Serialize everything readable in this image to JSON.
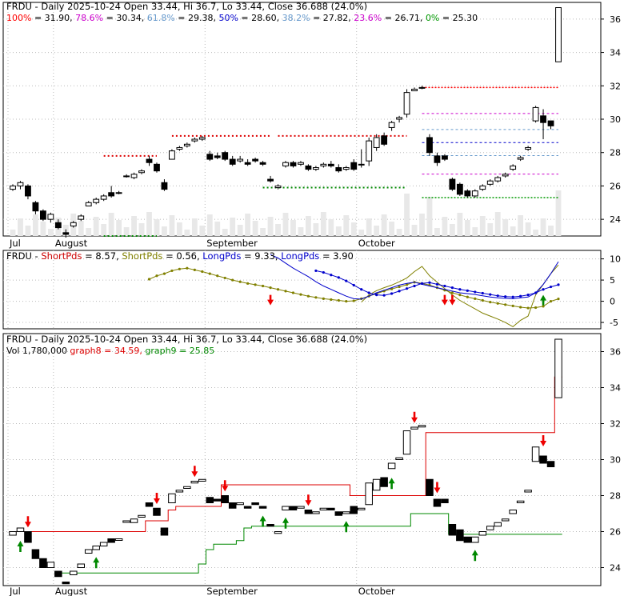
{
  "colors": {
    "frame": "#000000",
    "grid": "#bbbbbb",
    "bull_fill": "#ffffff",
    "bear_fill": "#000000",
    "text": "#000000",
    "fib100": "#ff0000",
    "fib786": "#cc00cc",
    "fib618": "#6699cc",
    "fib50": "#0000cc",
    "fib382": "#6699cc",
    "fib236": "#cc00cc",
    "fib0": "#009900",
    "resistance": "#dd0000",
    "support": "#008800",
    "shortpds1": "#cc0000",
    "shortpds2": "#808000",
    "longpds1": "#0000cc",
    "longpds2": "#0000cc",
    "graph8": "#dd0000",
    "graph9": "#008800",
    "volume": "#e8e8e8",
    "arrow_down": "#ee0000",
    "arrow_up": "#008800"
  },
  "panel1": {
    "title": "FRDU - Daily 2025-10-24 Open 33.44, Hi 36.7, Lo 33.44, Close 36.688 (24.0%)",
    "fib_labels": [
      {
        "key": "100%",
        "val": " = 31.90,",
        "color": "#ff0000"
      },
      {
        "key": "78.6%",
        "val": " = 30.34,",
        "color": "#cc00cc"
      },
      {
        "key": "61.8%",
        "val": " = 29.38,",
        "color": "#6699cc"
      },
      {
        "key": "50%",
        "val": " = 28.60,",
        "color": "#0000cc"
      },
      {
        "key": "38.2%",
        "val": " = 27.82,",
        "color": "#6699cc"
      },
      {
        "key": "23.6%",
        "val": " = 26.71,",
        "color": "#cc00cc"
      },
      {
        "key": "0%",
        "val": " = 25.30",
        "color": "#009900"
      }
    ],
    "y_ticks": [
      "24",
      "26",
      "28",
      "30",
      "32",
      "34",
      "36"
    ]
  },
  "panel2": {
    "name": "FRDU",
    "legend": [
      {
        "label": "ShortPds",
        "val": " = 8.57,",
        "color": "#cc0000"
      },
      {
        "label": "ShortPds",
        "val": " = 0.56,",
        "color": "#808000"
      },
      {
        "label": "LongPds",
        "val": " = 9.33,",
        "color": "#0000cc"
      },
      {
        "label": "LongPds",
        "val": " = 3.90",
        "color": "#0000cc"
      }
    ],
    "y_ticks": [
      "10",
      "5",
      "0",
      "-5"
    ]
  },
  "panel3": {
    "title": "FRDU - Daily 2025-10-24 Open 33.44, Hi 36.7, Lo 33.44, Close 36.688 (24.0%)",
    "legend": [
      {
        "label": "Vol 1,780,000",
        "color": "#000000"
      },
      {
        "label": " graph8 = 34.59,",
        "color": "#dd0000"
      },
      {
        "label": " graph9 = 25.85",
        "color": "#008800"
      }
    ],
    "y_ticks": [
      "24",
      "26",
      "28",
      "30",
      "32",
      "34",
      "36"
    ]
  },
  "x_labels": [
    "Jul",
    "August",
    "September",
    "October"
  ],
  "chart_data": {
    "type": "candlestick",
    "title": "FRDU - Daily 2025-10-24 Open 33.44, Hi 36.7, Lo 33.44, Close 36.688 (24.0%)",
    "ylim": [
      23,
      37
    ],
    "month_ticks": [
      {
        "label": "Jul",
        "index": 0
      },
      {
        "label": "August",
        "index": 6
      },
      {
        "label": "September",
        "index": 26
      },
      {
        "label": "October",
        "index": 46
      }
    ],
    "candles": [
      [
        25.8,
        26.1,
        25.7,
        26.0
      ],
      [
        26.0,
        26.3,
        25.8,
        26.2
      ],
      [
        26.0,
        26.1,
        25.2,
        25.4
      ],
      [
        25.0,
        25.1,
        24.3,
        24.5
      ],
      [
        24.5,
        24.6,
        23.9,
        24.0
      ],
      [
        24.0,
        24.4,
        23.8,
        24.3
      ],
      [
        23.8,
        24.0,
        23.4,
        23.5
      ],
      [
        23.2,
        23.4,
        22.9,
        23.1
      ],
      [
        23.6,
        23.9,
        23.5,
        23.8
      ],
      [
        24.0,
        24.3,
        23.9,
        24.2
      ],
      [
        24.8,
        25.1,
        24.8,
        25.0
      ],
      [
        25.0,
        25.3,
        24.9,
        25.2
      ],
      [
        25.2,
        25.5,
        25.1,
        25.4
      ],
      [
        25.6,
        26.0,
        25.3,
        25.4
      ],
      [
        25.6,
        25.7,
        25.5,
        25.6
      ],
      [
        26.6,
        26.7,
        26.5,
        26.6
      ],
      [
        26.5,
        26.8,
        26.4,
        26.7
      ],
      [
        26.8,
        27.0,
        26.7,
        26.9
      ],
      [
        27.6,
        27.8,
        27.2,
        27.4
      ],
      [
        27.3,
        27.4,
        26.8,
        26.9
      ],
      [
        26.2,
        26.4,
        25.7,
        25.8
      ],
      [
        27.6,
        28.2,
        27.6,
        28.1
      ],
      [
        28.2,
        28.4,
        28.1,
        28.3
      ],
      [
        28.4,
        28.6,
        28.3,
        28.5
      ],
      [
        28.7,
        28.9,
        28.6,
        28.8
      ],
      [
        28.8,
        29.0,
        28.7,
        28.9
      ],
      [
        27.9,
        28.1,
        27.5,
        27.6
      ],
      [
        27.8,
        28.0,
        27.6,
        27.7
      ],
      [
        28.0,
        28.1,
        27.5,
        27.6
      ],
      [
        27.6,
        27.8,
        27.2,
        27.3
      ],
      [
        27.5,
        27.8,
        27.4,
        27.6
      ],
      [
        27.4,
        27.6,
        27.2,
        27.3
      ],
      [
        27.6,
        27.7,
        27.4,
        27.5
      ],
      [
        27.4,
        27.5,
        27.2,
        27.3
      ],
      [
        26.4,
        26.6,
        26.2,
        26.3
      ],
      [
        25.9,
        26.1,
        25.8,
        26.0
      ],
      [
        27.2,
        27.5,
        27.1,
        27.4
      ],
      [
        27.4,
        27.5,
        27.1,
        27.2
      ],
      [
        27.3,
        27.5,
        27.2,
        27.4
      ],
      [
        27.2,
        27.3,
        26.9,
        27.0
      ],
      [
        27.0,
        27.2,
        26.9,
        27.1
      ],
      [
        27.2,
        27.4,
        27.1,
        27.3
      ],
      [
        27.3,
        27.5,
        27.1,
        27.2
      ],
      [
        27.1,
        27.3,
        26.8,
        26.9
      ],
      [
        27.0,
        27.2,
        26.9,
        27.1
      ],
      [
        27.4,
        27.6,
        26.9,
        27.0
      ],
      [
        27.3,
        28.2,
        27.1,
        27.3
      ],
      [
        27.5,
        28.9,
        27.2,
        28.7
      ],
      [
        28.3,
        29.1,
        28.1,
        28.9
      ],
      [
        29.0,
        29.2,
        28.4,
        28.5
      ],
      [
        29.5,
        29.9,
        29.3,
        29.8
      ],
      [
        30.0,
        30.2,
        29.8,
        30.1
      ],
      [
        30.3,
        31.8,
        30.1,
        31.6
      ],
      [
        31.7,
        31.9,
        31.7,
        31.8
      ],
      [
        31.9,
        32.0,
        31.8,
        31.9
      ],
      [
        28.9,
        29.1,
        27.8,
        28.0
      ],
      [
        27.8,
        28.0,
        27.2,
        27.4
      ],
      [
        27.8,
        27.9,
        27.5,
        27.6
      ],
      [
        26.4,
        26.5,
        25.7,
        25.8
      ],
      [
        26.1,
        26.2,
        25.4,
        25.5
      ],
      [
        25.7,
        25.8,
        25.3,
        25.4
      ],
      [
        25.4,
        25.8,
        25.3,
        25.7
      ],
      [
        25.8,
        26.1,
        25.7,
        26.0
      ],
      [
        26.1,
        26.4,
        26.0,
        26.3
      ],
      [
        26.3,
        26.6,
        26.2,
        26.5
      ],
      [
        26.6,
        26.8,
        26.5,
        26.7
      ],
      [
        27.0,
        27.3,
        26.9,
        27.2
      ],
      [
        27.6,
        27.8,
        27.5,
        27.7
      ],
      [
        28.2,
        28.4,
        28.1,
        28.3
      ],
      [
        29.9,
        30.8,
        29.8,
        30.7
      ],
      [
        30.2,
        30.6,
        28.8,
        29.8
      ],
      [
        29.9,
        29.9,
        29.4,
        29.6
      ],
      [
        33.44,
        36.7,
        33.44,
        36.688
      ]
    ],
    "fib_lines": [
      {
        "name": "100%",
        "value": 31.9
      },
      {
        "name": "78.6%",
        "value": 30.34
      },
      {
        "name": "61.8%",
        "value": 29.38
      },
      {
        "name": "50%",
        "value": 28.6
      },
      {
        "name": "38.2%",
        "value": 27.82
      },
      {
        "name": "23.6%",
        "value": 26.71
      },
      {
        "name": "0%",
        "value": 25.3
      }
    ],
    "indicator": {
      "ylim": [
        -6.5,
        12
      ],
      "series": [
        {
          "name": "ShortPds",
          "values": [
            null,
            null,
            null,
            null,
            null,
            null,
            null,
            null,
            null,
            null,
            null,
            null,
            null,
            null,
            null,
            null,
            null,
            null,
            null,
            null,
            null,
            null,
            null,
            null,
            null,
            null,
            null,
            null,
            null,
            null,
            null,
            null,
            null,
            null,
            null,
            null,
            null,
            null,
            null,
            null,
            null,
            null,
            null,
            null,
            null,
            null,
            -0.2,
            1.5,
            2.5,
            3.2,
            3.8,
            4.6,
            5.5,
            7.0,
            8.2,
            6.0,
            4.5,
            3.0,
            1.5,
            0.2,
            -0.8,
            -1.8,
            -2.8,
            -3.5,
            -4.2,
            -5.0,
            -6.0,
            -4.5,
            -3.5,
            1.5,
            4.0,
            6.5,
            8.57
          ]
        },
        {
          "name": "ShortPds",
          "values": [
            null,
            null,
            null,
            null,
            null,
            null,
            null,
            null,
            null,
            null,
            null,
            null,
            null,
            null,
            null,
            null,
            null,
            null,
            5.2,
            6.0,
            6.5,
            7.2,
            7.6,
            7.8,
            7.4,
            7.0,
            6.5,
            6.0,
            5.5,
            5.0,
            4.6,
            4.2,
            3.9,
            3.6,
            3.2,
            2.8,
            2.4,
            2.0,
            1.6,
            1.2,
            0.9,
            0.6,
            0.4,
            0.2,
            0.0,
            0.1,
            0.6,
            1.2,
            1.8,
            2.4,
            2.9,
            3.4,
            3.9,
            4.5,
            4.2,
            3.8,
            3.2,
            2.6,
            2.0,
            1.5,
            1.0,
            0.6,
            0.2,
            -0.2,
            -0.5,
            -0.8,
            -1.1,
            -1.4,
            -1.6,
            -1.5,
            -1.2,
            0.0,
            0.56
          ]
        },
        {
          "name": "LongPds",
          "values": [
            null,
            null,
            null,
            null,
            null,
            null,
            null,
            null,
            null,
            null,
            null,
            null,
            null,
            null,
            null,
            null,
            null,
            null,
            null,
            null,
            null,
            null,
            null,
            null,
            null,
            null,
            null,
            null,
            null,
            null,
            null,
            null,
            null,
            null,
            11.0,
            10.2,
            9.0,
            7.8,
            6.8,
            5.8,
            4.6,
            3.6,
            2.8,
            2.0,
            1.2,
            0.6,
            0.5,
            1.2,
            2.0,
            2.6,
            3.2,
            3.8,
            4.2,
            4.5,
            4.0,
            3.6,
            3.2,
            2.8,
            2.4,
            2.0,
            1.8,
            1.6,
            1.3,
            1.0,
            0.8,
            0.7,
            0.6,
            0.8,
            1.0,
            2.0,
            4.0,
            6.5,
            9.33
          ]
        },
        {
          "name": "LongPds",
          "values": [
            null,
            null,
            null,
            null,
            null,
            null,
            null,
            null,
            null,
            null,
            null,
            null,
            null,
            null,
            null,
            null,
            null,
            null,
            null,
            null,
            null,
            null,
            null,
            null,
            null,
            null,
            null,
            null,
            null,
            null,
            null,
            null,
            null,
            null,
            null,
            null,
            null,
            null,
            null,
            null,
            7.2,
            6.8,
            6.2,
            5.6,
            4.8,
            3.8,
            2.8,
            2.0,
            1.5,
            1.4,
            1.8,
            2.4,
            3.0,
            3.6,
            4.2,
            4.4,
            4.0,
            3.6,
            3.2,
            2.8,
            2.5,
            2.2,
            1.9,
            1.6,
            1.3,
            1.1,
            1.0,
            1.2,
            1.5,
            2.0,
            2.8,
            3.4,
            3.9
          ]
        }
      ],
      "arrows": [
        {
          "index": 34,
          "dir": "down"
        },
        {
          "index": 57,
          "dir": "down"
        },
        {
          "index": 58,
          "dir": "down"
        },
        {
          "index": 70,
          "dir": "up"
        }
      ]
    },
    "bottom": {
      "ylim": [
        23,
        37
      ],
      "graph8": [
        26.0,
        26.0,
        26.0,
        26.0,
        26.0,
        26.0,
        26.0,
        26.0,
        26.0,
        26.0,
        26.0,
        26.0,
        26.0,
        26.0,
        26.0,
        26.0,
        26.0,
        26.0,
        26.6,
        26.6,
        26.6,
        27.2,
        27.4,
        27.4,
        27.4,
        27.4,
        27.4,
        27.4,
        28.6,
        28.6,
        28.6,
        28.6,
        28.6,
        28.6,
        28.6,
        28.6,
        28.6,
        28.6,
        28.6,
        28.6,
        28.6,
        28.6,
        28.6,
        28.6,
        28.6,
        28.0,
        28.0,
        28.0,
        28.0,
        28.0,
        28.0,
        28.0,
        28.0,
        28.0,
        28.0,
        31.5,
        31.5,
        31.5,
        31.5,
        31.5,
        31.5,
        31.5,
        31.5,
        31.5,
        31.5,
        31.5,
        31.5,
        31.5,
        31.5,
        31.5,
        31.5,
        31.5,
        34.59
      ],
      "graph9": [
        null,
        null,
        null,
        null,
        null,
        null,
        23.7,
        23.7,
        23.7,
        23.7,
        23.7,
        23.7,
        23.7,
        23.7,
        23.7,
        23.7,
        23.7,
        23.7,
        23.7,
        23.7,
        23.7,
        23.7,
        23.7,
        23.7,
        23.7,
        24.2,
        25.0,
        25.3,
        25.3,
        25.3,
        25.5,
        26.2,
        26.3,
        26.3,
        26.3,
        26.3,
        26.3,
        26.3,
        26.3,
        26.3,
        26.3,
        26.3,
        26.3,
        26.3,
        26.3,
        26.3,
        26.3,
        26.3,
        26.3,
        26.3,
        26.3,
        26.3,
        26.3,
        27.0,
        27.0,
        27.0,
        27.0,
        27.0,
        25.85,
        25.85,
        25.85,
        25.85,
        25.85,
        25.85,
        25.85,
        25.85,
        25.85,
        25.85,
        25.85,
        25.85,
        25.85,
        25.85,
        25.85
      ],
      "volume_note": "Vol 1,780,000",
      "arrows": [
        {
          "index": 2,
          "dir": "down"
        },
        {
          "index": 1,
          "dir": "up"
        },
        {
          "index": 11,
          "dir": "up"
        },
        {
          "index": 19,
          "dir": "down"
        },
        {
          "index": 24,
          "dir": "down"
        },
        {
          "index": 28,
          "dir": "down"
        },
        {
          "index": 33,
          "dir": "up"
        },
        {
          "index": 36,
          "dir": "up"
        },
        {
          "index": 39,
          "dir": "down"
        },
        {
          "index": 44,
          "dir": "up"
        },
        {
          "index": 50,
          "dir": "up"
        },
        {
          "index": 53,
          "dir": "down"
        },
        {
          "index": 56,
          "dir": "down"
        },
        {
          "index": 61,
          "dir": "up"
        },
        {
          "index": 70,
          "dir": "down"
        }
      ]
    }
  }
}
